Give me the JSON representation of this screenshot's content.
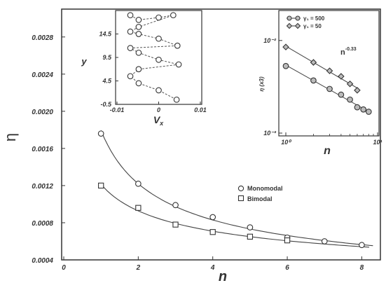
{
  "chart_data": [
    {
      "type": "scatter",
      "xlabel": "n",
      "ylabel": "η",
      "xlim": [
        0,
        8.5
      ],
      "ylim": [
        0.0004,
        0.0031
      ],
      "x_ticks": [
        0,
        2,
        4,
        6,
        8
      ],
      "y_ticks": [
        "0.0004",
        "0.0008",
        "0.0012",
        "0.0016",
        "0.0020",
        "0.0024",
        "0.0028"
      ],
      "grid": false,
      "legend_position": "center-right",
      "series": [
        {
          "name": "Monomodal",
          "marker": "circle",
          "fit_line": true,
          "x": [
            1,
            2,
            3,
            4,
            5,
            6,
            7,
            8
          ],
          "y": [
            0.00176,
            0.00122,
            0.00099,
            0.00086,
            0.00075,
            0.00064,
            0.0006,
            0.00056
          ]
        },
        {
          "name": "Bimodal",
          "marker": "square",
          "fit_line": true,
          "x": [
            1,
            2,
            3,
            4,
            5,
            6
          ],
          "y": [
            0.0012,
            0.00096,
            0.00078,
            0.0007,
            0.00065,
            0.00061
          ]
        }
      ]
    },
    {
      "type": "line",
      "inset": "top-left",
      "xlabel": "V_x",
      "ylabel": "y",
      "xlim": [
        -0.01,
        0.01
      ],
      "ylim": [
        -0.5,
        19.5
      ],
      "x_ticks": [
        "-0.01",
        "0",
        "0.01"
      ],
      "y_ticks": [
        "-0.5",
        "4.5",
        "9.5",
        "14.5"
      ],
      "x": [
        -0.0068,
        -0.0048,
        0.0,
        0.0035,
        -0.0048,
        -0.0068,
        -0.0048,
        0.0,
        0.0045,
        -0.0068,
        -0.0048,
        0.0,
        0.0048,
        -0.0048,
        -0.0068,
        -0.0048,
        0.0,
        0.0043
      ],
      "y": [
        18.5,
        17.5,
        18.0,
        18.5,
        16.0,
        15.0,
        14.5,
        13.5,
        12.0,
        11.5,
        10.5,
        9.0,
        8.0,
        7.0,
        5.5,
        4.0,
        2.5,
        0.5
      ]
    },
    {
      "type": "scatter",
      "inset": "top-right",
      "xlabel": "n",
      "ylabel": "η (x3)",
      "xscale": "log",
      "yscale": "log",
      "xlim": [
        1,
        10
      ],
      "ylim": [
        0.001,
        0.02
      ],
      "x_ticks": [
        "10⁰",
        "10¹"
      ],
      "y_ticks": [
        "10⁻²",
        "10⁻³"
      ],
      "annotation": "n^-0.33",
      "series": [
        {
          "name": "γ₁ = 500",
          "marker": "circle",
          "x": [
            1,
            2,
            3,
            4,
            5,
            6,
            7,
            8
          ],
          "y": [
            0.0053,
            0.0037,
            0.003,
            0.0026,
            0.0023,
            0.0019,
            0.0018,
            0.0017
          ]
        },
        {
          "name": "γ₁ = 50",
          "marker": "diamond",
          "x": [
            1,
            2,
            3,
            4,
            5,
            6
          ],
          "y": [
            0.0085,
            0.0058,
            0.0047,
            0.0041,
            0.0034,
            0.0029
          ]
        }
      ]
    }
  ]
}
